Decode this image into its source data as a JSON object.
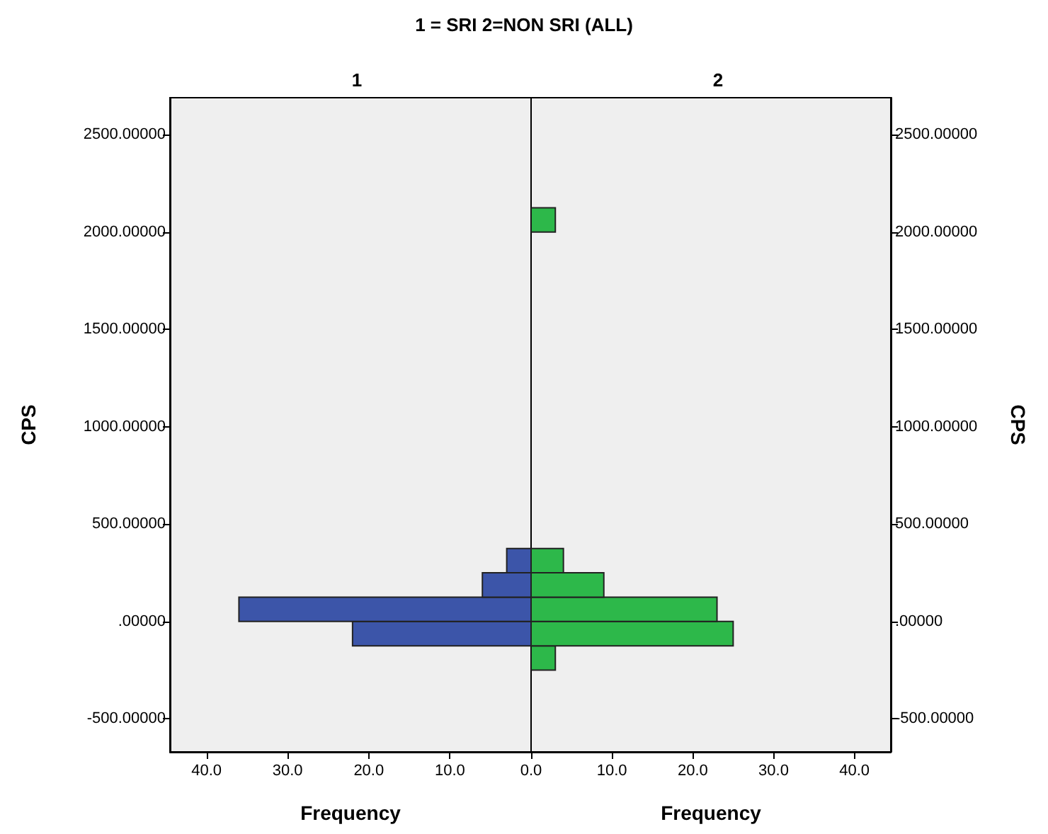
{
  "chart_data": [
    {
      "type": "histogram",
      "orientation": "horizontal",
      "title": "1 = SRI 2=NON SRI (ALL)",
      "subtitle": "1",
      "xlabel": "Frequency",
      "ylabel": "CPS",
      "bins": [
        -250,
        -125,
        0,
        125,
        250,
        375,
        500,
        625,
        750,
        875,
        1000,
        1125,
        1250,
        1375,
        1500,
        1625,
        1750,
        1875,
        2000,
        2125
      ],
      "values": [
        0,
        22,
        36,
        6,
        3,
        0,
        0,
        0,
        0,
        0,
        0,
        0,
        0,
        0,
        0,
        0,
        0,
        0,
        0
      ],
      "color": "#3c55a9",
      "xlim": [
        44.5,
        0
      ],
      "xticks": [
        {
          "value": 40,
          "label": "40.0"
        },
        {
          "value": 30,
          "label": "30.0"
        },
        {
          "value": 20,
          "label": "20.0"
        },
        {
          "value": 10,
          "label": "10.0"
        },
        {
          "value": 0,
          "label": "0.0"
        }
      ],
      "ylim": [
        -670,
        2690
      ],
      "yticks": [
        {
          "value": -500,
          "label": "-500.00000"
        },
        {
          "value": 0,
          "label": ".00000"
        },
        {
          "value": 500,
          "label": "500.00000"
        },
        {
          "value": 1000,
          "label": "1000.00000"
        },
        {
          "value": 1500,
          "label": "1500.00000"
        },
        {
          "value": 2000,
          "label": "2000.00000"
        },
        {
          "value": 2500,
          "label": "2500.00000"
        }
      ],
      "grid": false
    },
    {
      "type": "histogram",
      "orientation": "horizontal",
      "subtitle": "2",
      "xlabel": "Frequency",
      "ylabel": "CPS",
      "bins": [
        -250,
        -125,
        0,
        125,
        250,
        375,
        500,
        625,
        750,
        875,
        1000,
        1125,
        1250,
        1375,
        1500,
        1625,
        1750,
        1875,
        2000,
        2125
      ],
      "values": [
        3,
        25,
        23,
        9,
        4,
        0,
        0,
        0,
        0,
        0,
        0,
        0,
        0,
        0,
        0,
        0,
        0,
        0,
        3
      ],
      "color": "#2db84a",
      "xlim": [
        0,
        44.5
      ],
      "xticks": [
        {
          "value": 0,
          "label": null
        },
        {
          "value": 10,
          "label": "10.0"
        },
        {
          "value": 20,
          "label": "20.0"
        },
        {
          "value": 30,
          "label": "30.0"
        },
        {
          "value": 40,
          "label": "40.0"
        }
      ],
      "ylim": [
        -670,
        2690
      ],
      "yticks": [
        {
          "value": -500,
          "label": "-500.00000"
        },
        {
          "value": 0,
          "label": ".00000"
        },
        {
          "value": 500,
          "label": "500.00000"
        },
        {
          "value": 1000,
          "label": "1000.00000"
        },
        {
          "value": 1500,
          "label": "1500.00000"
        },
        {
          "value": 2000,
          "label": "2000.00000"
        },
        {
          "value": 2500,
          "label": "2500.00000"
        }
      ],
      "grid": false
    }
  ]
}
